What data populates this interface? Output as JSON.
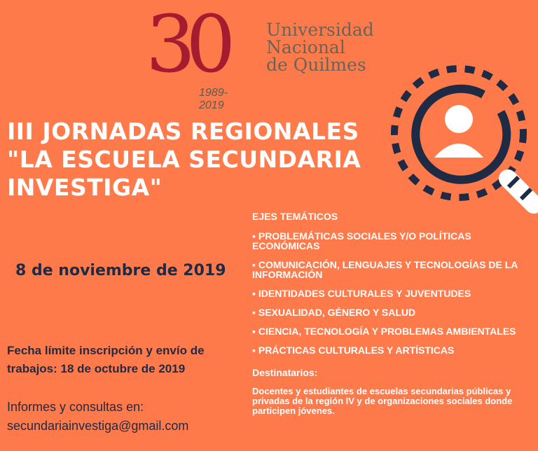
{
  "logo": {
    "number": "30",
    "years": "1989-2019",
    "name_lines": [
      "Universidad",
      "Nacional",
      "de Quilmes"
    ],
    "colors": {
      "red": "#A51C30",
      "gray": "#5E5A4F"
    }
  },
  "title_lines": [
    "III JORNADAS REGIONALES",
    "\"LA ESCUELA SECUNDARIA",
    "INVESTIGA\""
  ],
  "date": "8 de noviembre de 2019",
  "deadline": "Fecha límite inscripción y envío de trabajos: 18 de octubre de 2019",
  "info": {
    "label": "Informes y consultas en:",
    "email": "secundariainvestiga@gmail.com"
  },
  "ejes": {
    "heading": "EJES TEMÁTICOS",
    "topics": [
      "▪  PROBLEMÁTICAS SOCIALES Y/O POLÍTICAS ECONÓMICAS",
      "▪ COMUNICACIÓN, LENGUAJES Y TECNOLOGÍAS DE LA INFORMACIÓN",
      "▪ IDENTIDADES CULTURALES Y JUVENTUDES",
      "▪ SEXUALIDAD, GÉNERO Y SALUD",
      "▪ CIENCIA, TECNOLOGÍA Y PROBLEMAS AMBIENTALES",
      "▪ PRÁCTICAS CULTURALES Y ARTÍSTICAS"
    ]
  },
  "destinatarios": {
    "label": "Destinatarios:",
    "text": "Docentes y estudiantes de escuelas secundarias públicas y privadas de la región IV y de organizaciones sociales donde participen jóvenes."
  },
  "icons": {
    "magnifier": "magnifying-glass-person-icon"
  },
  "colors": {
    "background": "#FF7A4A",
    "navy": "#1F2A44",
    "text": "#FFFFFF"
  }
}
